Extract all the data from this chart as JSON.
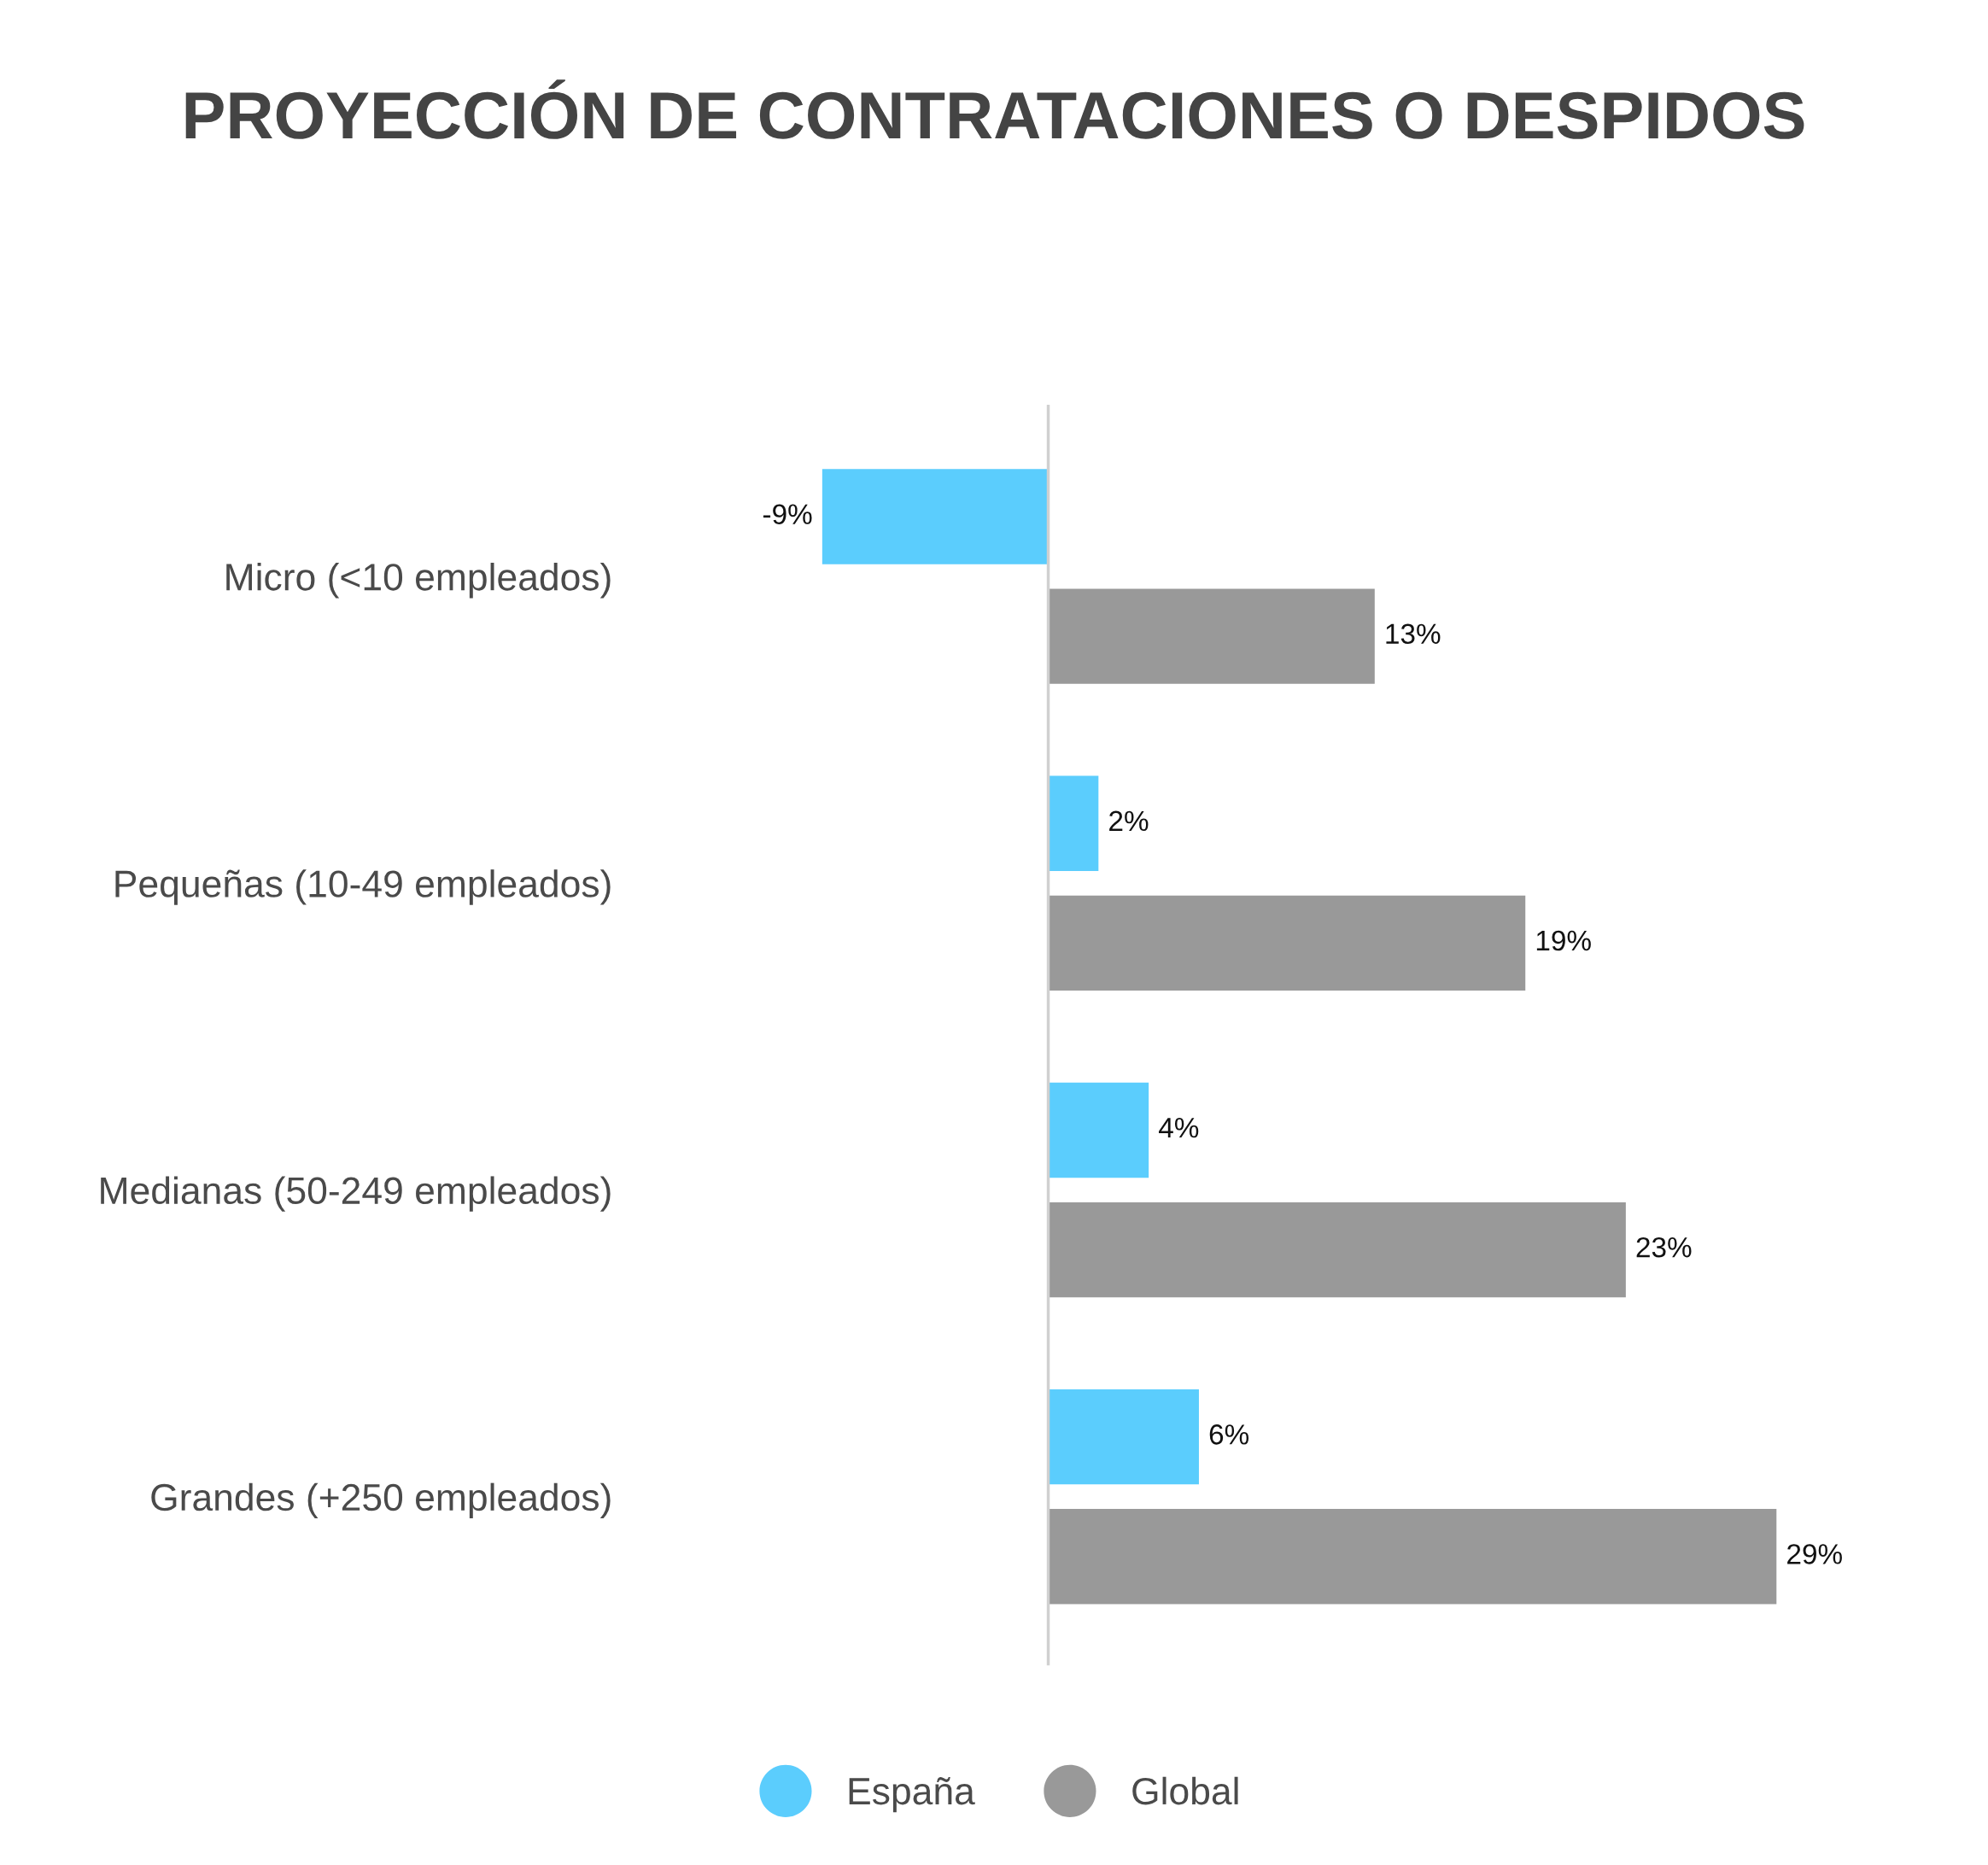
{
  "chart_data": {
    "type": "bar",
    "orientation": "horizontal",
    "title": "PROYECCIÓN DE CONTRATACIONES O DESPIDOS",
    "categories": [
      "Micro (<10 empleados)",
      "Pequeñas (10-49 empleados)",
      "Medianas (50-249 empleados)",
      "Grandes (+250 empleados)"
    ],
    "series": [
      {
        "name": "España",
        "color": "#5bcdfd",
        "values": [
          -9,
          2,
          4,
          6
        ],
        "value_labels": [
          "-9%",
          "2%",
          "4%",
          "6%"
        ]
      },
      {
        "name": "Global",
        "color": "#999999",
        "values": [
          13,
          19,
          23,
          29
        ],
        "value_labels": [
          "13%",
          "19%",
          "23%",
          "29%"
        ]
      }
    ],
    "legend": "bottom",
    "grid": false,
    "marker": "circle"
  }
}
